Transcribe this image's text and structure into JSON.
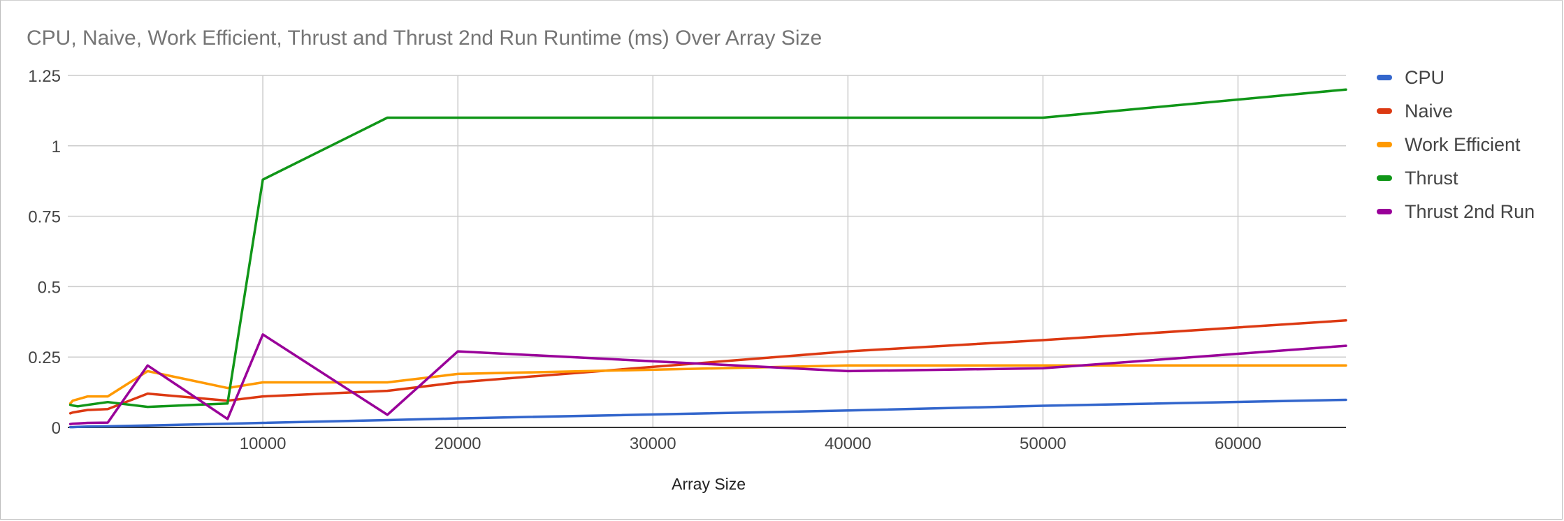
{
  "chart_data": {
    "type": "line",
    "title": "CPU, Naive, Work Efficient, Thrust and Thrust 2nd Run Runtime (ms) Over Array Size",
    "xlabel": "Array Size",
    "ylabel": "",
    "xlim": [
      0,
      65536
    ],
    "ylim": [
      0,
      1.25
    ],
    "xticks": [
      10000,
      20000,
      30000,
      40000,
      50000,
      60000
    ],
    "xtick_labels": [
      "10000",
      "20000",
      "30000",
      "40000",
      "50000",
      "60000"
    ],
    "yticks": [
      0,
      0.25,
      0.5,
      0.75,
      1,
      1.25
    ],
    "ytick_labels": [
      "0",
      "0.25",
      "0.5",
      "0.75",
      "1",
      "1.25"
    ],
    "grid": true,
    "legend_position": "right",
    "series": [
      {
        "name": "CPU",
        "color": "#3366cc",
        "points": [
          [
            128,
            0.001
          ],
          [
            256,
            0.001
          ],
          [
            512,
            0.002
          ],
          [
            1024,
            0.003
          ],
          [
            2048,
            0.004
          ],
          [
            4096,
            0.007
          ],
          [
            8192,
            0.013
          ],
          [
            10000,
            0.016
          ],
          [
            16384,
            0.026
          ],
          [
            20000,
            0.032
          ],
          [
            40000,
            0.06
          ],
          [
            50000,
            0.077
          ],
          [
            65536,
            0.098
          ]
        ]
      },
      {
        "name": "Naive",
        "color": "#dc3912",
        "points": [
          [
            128,
            0.05
          ],
          [
            256,
            0.053
          ],
          [
            512,
            0.056
          ],
          [
            1024,
            0.062
          ],
          [
            2048,
            0.065
          ],
          [
            4096,
            0.12
          ],
          [
            8192,
            0.095
          ],
          [
            10000,
            0.11
          ],
          [
            16384,
            0.13
          ],
          [
            20000,
            0.16
          ],
          [
            40000,
            0.27
          ],
          [
            50000,
            0.31
          ],
          [
            65536,
            0.38
          ]
        ]
      },
      {
        "name": "Work Efficient",
        "color": "#ff9900",
        "points": [
          [
            128,
            0.085
          ],
          [
            256,
            0.095
          ],
          [
            512,
            0.1
          ],
          [
            1024,
            0.11
          ],
          [
            2048,
            0.11
          ],
          [
            4096,
            0.2
          ],
          [
            8192,
            0.14
          ],
          [
            10000,
            0.16
          ],
          [
            16384,
            0.16
          ],
          [
            20000,
            0.19
          ],
          [
            40000,
            0.22
          ],
          [
            50000,
            0.22
          ],
          [
            65536,
            0.22
          ]
        ]
      },
      {
        "name": "Thrust",
        "color": "#109618",
        "points": [
          [
            128,
            0.08
          ],
          [
            256,
            0.078
          ],
          [
            512,
            0.075
          ],
          [
            1024,
            0.08
          ],
          [
            2048,
            0.09
          ],
          [
            4096,
            0.073
          ],
          [
            8192,
            0.085
          ],
          [
            10000,
            0.88
          ],
          [
            16384,
            1.1
          ],
          [
            20000,
            1.1
          ],
          [
            40000,
            1.1
          ],
          [
            50000,
            1.1
          ],
          [
            65536,
            1.2
          ]
        ]
      },
      {
        "name": "Thrust 2nd Run",
        "color": "#990099",
        "points": [
          [
            128,
            0.012
          ],
          [
            256,
            0.013
          ],
          [
            512,
            0.014
          ],
          [
            1024,
            0.016
          ],
          [
            2048,
            0.017
          ],
          [
            4096,
            0.22
          ],
          [
            8192,
            0.03
          ],
          [
            10000,
            0.33
          ],
          [
            16384,
            0.045
          ],
          [
            20000,
            0.27
          ],
          [
            40000,
            0.2
          ],
          [
            50000,
            0.21
          ],
          [
            65536,
            0.29
          ]
        ]
      }
    ]
  }
}
